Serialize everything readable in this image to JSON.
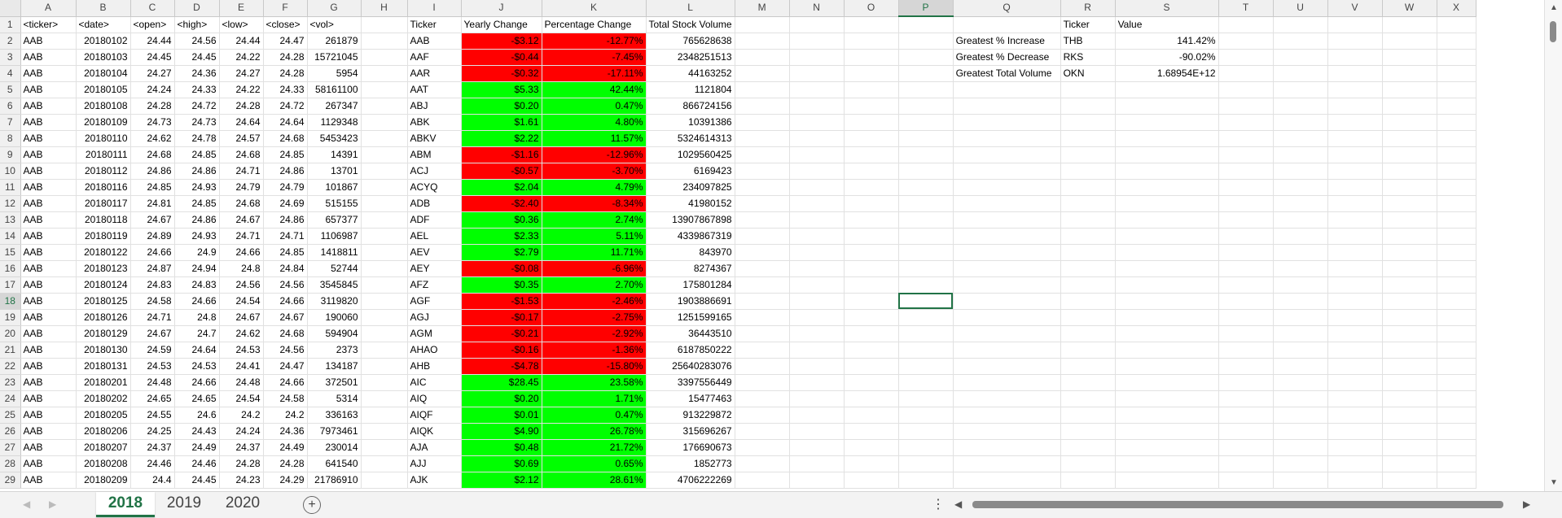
{
  "columns": [
    "A",
    "B",
    "C",
    "D",
    "E",
    "F",
    "G",
    "H",
    "I",
    "J",
    "K",
    "L",
    "M",
    "N",
    "O",
    "P",
    "Q",
    "R",
    "S",
    "T",
    "U",
    "V",
    "W",
    "X"
  ],
  "selected_column": "P",
  "selected_row": "18",
  "header_row": [
    "<ticker>",
    "<date>",
    "<open>",
    "<high>",
    "<low>",
    "<close>",
    "<vol>",
    "",
    "Ticker",
    "Yearly Change",
    "Percentage Change",
    "Total Stock Volume",
    "",
    "",
    "",
    "",
    "",
    "Ticker",
    "Value",
    "",
    "",
    "",
    "",
    ""
  ],
  "rows": [
    [
      "2",
      "AAB",
      "20180102",
      "24.44",
      "24.56",
      "24.44",
      "24.47",
      "261879",
      "AAB",
      "-$3.12",
      "-12.77%",
      "765628638",
      "down"
    ],
    [
      "3",
      "AAB",
      "20180103",
      "24.45",
      "24.45",
      "24.22",
      "24.28",
      "15721045",
      "AAF",
      "-$0.44",
      "-7.45%",
      "2348251513",
      "down"
    ],
    [
      "4",
      "AAB",
      "20180104",
      "24.27",
      "24.36",
      "24.27",
      "24.28",
      "5954",
      "AAR",
      "-$0.32",
      "-17.11%",
      "44163252",
      "down"
    ],
    [
      "5",
      "AAB",
      "20180105",
      "24.24",
      "24.33",
      "24.22",
      "24.33",
      "58161100",
      "AAT",
      "$5.33",
      "42.44%",
      "1121804",
      "up"
    ],
    [
      "6",
      "AAB",
      "20180108",
      "24.28",
      "24.72",
      "24.28",
      "24.72",
      "267347",
      "ABJ",
      "$0.20",
      "0.47%",
      "866724156",
      "up"
    ],
    [
      "7",
      "AAB",
      "20180109",
      "24.73",
      "24.73",
      "24.64",
      "24.64",
      "1129348",
      "ABK",
      "$1.61",
      "4.80%",
      "10391386",
      "up"
    ],
    [
      "8",
      "AAB",
      "20180110",
      "24.62",
      "24.78",
      "24.57",
      "24.68",
      "5453423",
      "ABKV",
      "$2.22",
      "11.57%",
      "5324614313",
      "up"
    ],
    [
      "9",
      "AAB",
      "20180111",
      "24.68",
      "24.85",
      "24.68",
      "24.85",
      "14391",
      "ABM",
      "-$1.16",
      "-12.96%",
      "1029560425",
      "down"
    ],
    [
      "10",
      "AAB",
      "20180112",
      "24.86",
      "24.86",
      "24.71",
      "24.86",
      "13701",
      "ACJ",
      "-$0.57",
      "-3.70%",
      "6169423",
      "down"
    ],
    [
      "11",
      "AAB",
      "20180116",
      "24.85",
      "24.93",
      "24.79",
      "24.79",
      "101867",
      "ACYQ",
      "$2.04",
      "4.79%",
      "234097825",
      "up"
    ],
    [
      "12",
      "AAB",
      "20180117",
      "24.81",
      "24.85",
      "24.68",
      "24.69",
      "515155",
      "ADB",
      "-$2.40",
      "-8.34%",
      "41980152",
      "down"
    ],
    [
      "13",
      "AAB",
      "20180118",
      "24.67",
      "24.86",
      "24.67",
      "24.86",
      "657377",
      "ADF",
      "$0.36",
      "2.74%",
      "13907867898",
      "up"
    ],
    [
      "14",
      "AAB",
      "20180119",
      "24.89",
      "24.93",
      "24.71",
      "24.71",
      "1106987",
      "AEL",
      "$2.33",
      "5.11%",
      "4339867319",
      "up"
    ],
    [
      "15",
      "AAB",
      "20180122",
      "24.66",
      "24.9",
      "24.66",
      "24.85",
      "1418811",
      "AEV",
      "$2.79",
      "11.71%",
      "843970",
      "up"
    ],
    [
      "16",
      "AAB",
      "20180123",
      "24.87",
      "24.94",
      "24.8",
      "24.84",
      "52744",
      "AEY",
      "-$0.08",
      "-6.96%",
      "8274367",
      "down"
    ],
    [
      "17",
      "AAB",
      "20180124",
      "24.83",
      "24.83",
      "24.56",
      "24.56",
      "3545845",
      "AFZ",
      "$0.35",
      "2.70%",
      "175801284",
      "up"
    ],
    [
      "18",
      "AAB",
      "20180125",
      "24.58",
      "24.66",
      "24.54",
      "24.66",
      "3119820",
      "AGF",
      "-$1.53",
      "-2.46%",
      "1903886691",
      "down"
    ],
    [
      "19",
      "AAB",
      "20180126",
      "24.71",
      "24.8",
      "24.67",
      "24.67",
      "190060",
      "AGJ",
      "-$0.17",
      "-2.75%",
      "1251599165",
      "down"
    ],
    [
      "20",
      "AAB",
      "20180129",
      "24.67",
      "24.7",
      "24.62",
      "24.68",
      "594904",
      "AGM",
      "-$0.21",
      "-2.92%",
      "36443510",
      "down"
    ],
    [
      "21",
      "AAB",
      "20180130",
      "24.59",
      "24.64",
      "24.53",
      "24.56",
      "2373",
      "AHAO",
      "-$0.16",
      "-1.36%",
      "6187850222",
      "down"
    ],
    [
      "22",
      "AAB",
      "20180131",
      "24.53",
      "24.53",
      "24.41",
      "24.47",
      "134187",
      "AHB",
      "-$4.78",
      "-15.80%",
      "25640283076",
      "down"
    ],
    [
      "23",
      "AAB",
      "20180201",
      "24.48",
      "24.66",
      "24.48",
      "24.66",
      "372501",
      "AIC",
      "$28.45",
      "23.58%",
      "3397556449",
      "up"
    ],
    [
      "24",
      "AAB",
      "20180202",
      "24.65",
      "24.65",
      "24.54",
      "24.58",
      "5314",
      "AIQ",
      "$0.20",
      "1.71%",
      "15477463",
      "up"
    ],
    [
      "25",
      "AAB",
      "20180205",
      "24.55",
      "24.6",
      "24.2",
      "24.2",
      "336163",
      "AIQF",
      "$0.01",
      "0.47%",
      "913229872",
      "up"
    ],
    [
      "26",
      "AAB",
      "20180206",
      "24.25",
      "24.43",
      "24.24",
      "24.36",
      "7973461",
      "AIQK",
      "$4.90",
      "26.78%",
      "315696267",
      "up"
    ],
    [
      "27",
      "AAB",
      "20180207",
      "24.37",
      "24.49",
      "24.37",
      "24.49",
      "230014",
      "AJA",
      "$0.48",
      "21.72%",
      "176690673",
      "up"
    ],
    [
      "28",
      "AAB",
      "20180208",
      "24.46",
      "24.46",
      "24.28",
      "24.28",
      "641540",
      "AJJ",
      "$0.69",
      "0.65%",
      "1852773",
      "up"
    ],
    [
      "29",
      "AAB",
      "20180209",
      "24.4",
      "24.45",
      "24.23",
      "24.29",
      "21786910",
      "AJK",
      "$2.12",
      "28.61%",
      "4706222269",
      "up"
    ]
  ],
  "summary": [
    {
      "label": "Greatest % Increase",
      "ticker": "THB",
      "value": "141.42%"
    },
    {
      "label": "Greatest % Decrease",
      "ticker": "RKS",
      "value": "-90.02%"
    },
    {
      "label": "Greatest Total Volume",
      "ticker": "OKN",
      "value": "1.68954E+12"
    }
  ],
  "colors": {
    "positive": "#00ff00",
    "negative": "#ff0000",
    "accent": "#217346"
  },
  "tabs": [
    {
      "label": "2018",
      "active": true
    },
    {
      "label": "2019",
      "active": false
    },
    {
      "label": "2020",
      "active": false
    }
  ],
  "icons": {
    "add_sheet": "plus-circle-icon",
    "more": "vertical-dots-icon"
  }
}
